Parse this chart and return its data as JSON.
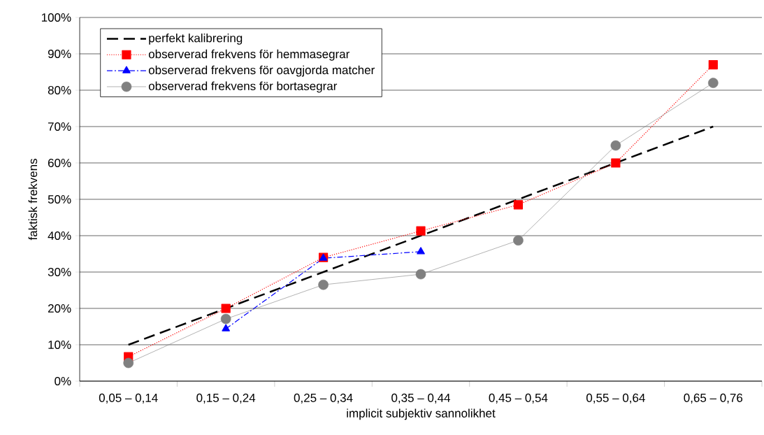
{
  "chart_data": {
    "type": "line",
    "xlabel": "implicit subjektiv sannolikhet",
    "ylabel": "faktisk frekvens",
    "categories": [
      "0,05 – 0,14",
      "0,15 – 0,24",
      "0,25 – 0,34",
      "0,35 – 0,44",
      "0,45 – 0,54",
      "0,55 – 0,64",
      "0,65 – 0,76"
    ],
    "ylim": [
      0,
      100
    ],
    "yticks": [
      {
        "value": 0,
        "label": "0%"
      },
      {
        "value": 10,
        "label": "10%"
      },
      {
        "value": 20,
        "label": "20%"
      },
      {
        "value": 30,
        "label": "30%"
      },
      {
        "value": 40,
        "label": "40%"
      },
      {
        "value": 50,
        "label": "50%"
      },
      {
        "value": 60,
        "label": "60%"
      },
      {
        "value": 70,
        "label": "70%"
      },
      {
        "value": 80,
        "label": "80%"
      },
      {
        "value": 90,
        "label": "90%"
      },
      {
        "value": 100,
        "label": "100%"
      }
    ],
    "grid": "y",
    "legend": "top left",
    "series": [
      {
        "name": "perfekt kalibrering",
        "color": "#000000",
        "marker": "none",
        "line_style": "dashed",
        "values": [
          10,
          20,
          30,
          40,
          50,
          60,
          70
        ]
      },
      {
        "name": "observerad frekvens för hemmasegrar",
        "color": "#ff0000",
        "marker": "square",
        "line_style": "dotted",
        "values": [
          6.7,
          20,
          34,
          41.3,
          48.5,
          60,
          87
        ]
      },
      {
        "name": "observerad frekvens för oavgjorda matcher",
        "color": "#0000ff",
        "marker": "triangle",
        "line_style": "dashdotted",
        "values": [
          null,
          14.4,
          33.8,
          35.6,
          null,
          null,
          null
        ]
      },
      {
        "name": "observerad frekvens för bortasegrar",
        "color": "#808080",
        "marker": "circle",
        "line_style": "solid",
        "values": [
          5,
          17.1,
          26.5,
          29.4,
          38.7,
          64.8,
          82
        ]
      }
    ]
  }
}
